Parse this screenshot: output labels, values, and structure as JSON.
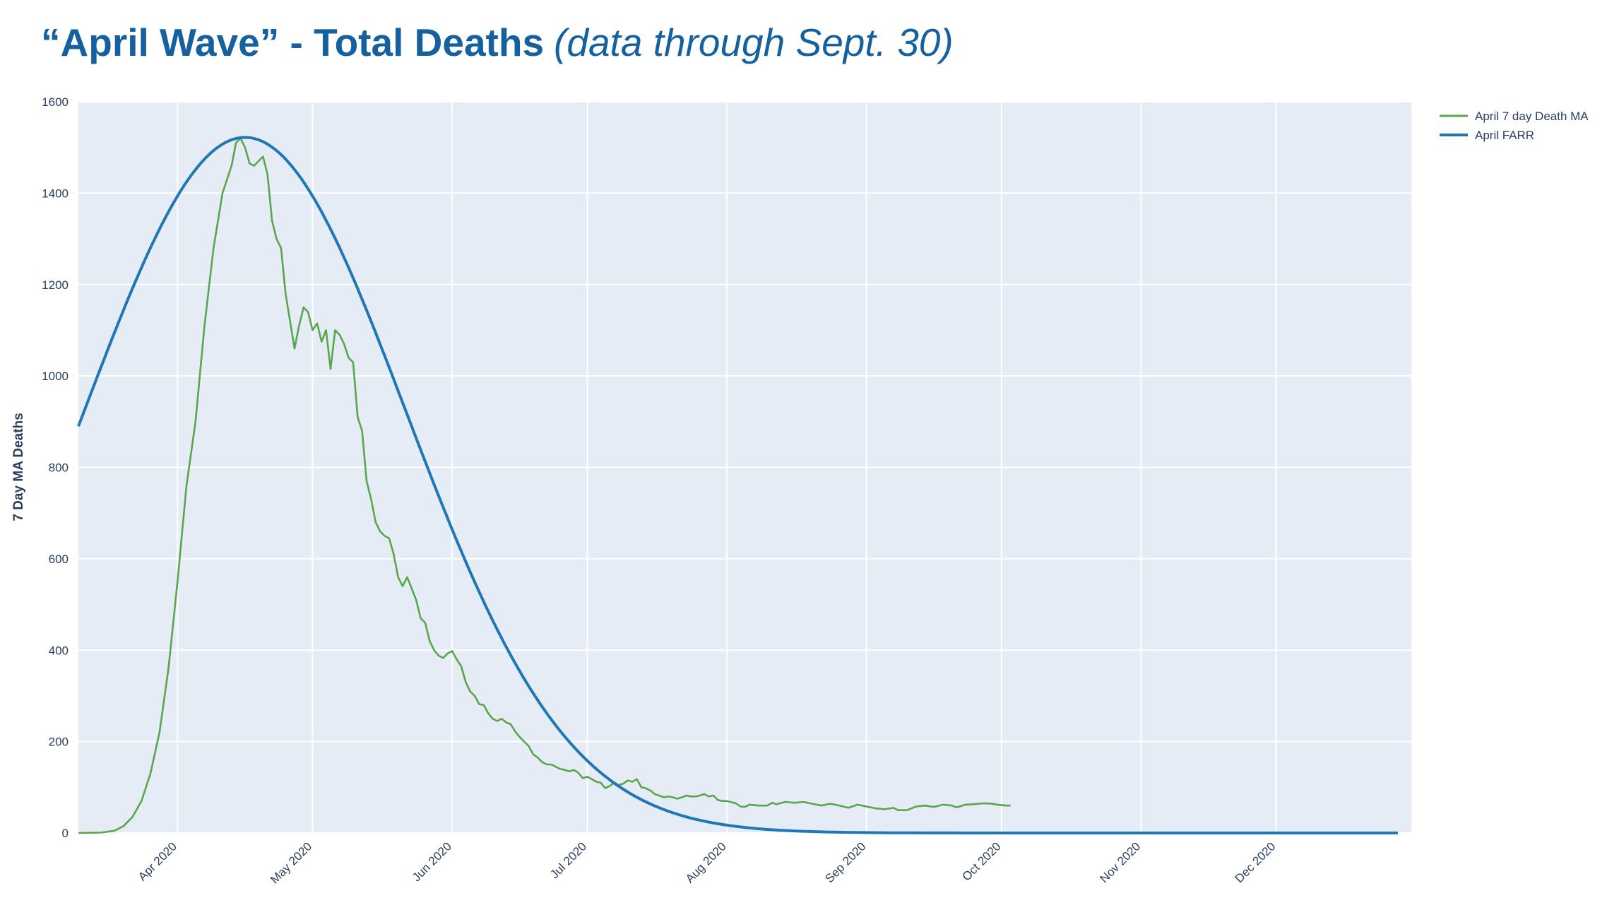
{
  "title": {
    "main": "“April Wave” - Total Deaths",
    "sub": "(data through Sept. 30)"
  },
  "chart_data": {
    "type": "line",
    "ylabel": "7 Day MA Deaths",
    "ylim": [
      0,
      1600
    ],
    "yticks": [
      0,
      200,
      400,
      600,
      800,
      1000,
      1200,
      1400,
      1600
    ],
    "xlim": [
      "2020-03-10",
      "2020-12-31"
    ],
    "xticks": [
      {
        "date": "2020-04-01",
        "label": "Apr 2020"
      },
      {
        "date": "2020-05-01",
        "label": "May 2020"
      },
      {
        "date": "2020-06-01",
        "label": "Jun 2020"
      },
      {
        "date": "2020-07-01",
        "label": "Jul 2020"
      },
      {
        "date": "2020-08-01",
        "label": "Aug 2020"
      },
      {
        "date": "2020-09-01",
        "label": "Sep 2020"
      },
      {
        "date": "2020-10-01",
        "label": "Oct 2020"
      },
      {
        "date": "2020-11-01",
        "label": "Nov 2020"
      },
      {
        "date": "2020-12-01",
        "label": "Dec 2020"
      }
    ],
    "grid": true,
    "legend_position": "top-right",
    "series": [
      {
        "name": "April 7 day Death MA",
        "color": "#5aa64b",
        "points": [
          [
            "2020-03-10",
            0
          ],
          [
            "2020-03-15",
            1
          ],
          [
            "2020-03-18",
            5
          ],
          [
            "2020-03-20",
            15
          ],
          [
            "2020-03-21",
            25
          ],
          [
            "2020-03-22",
            35
          ],
          [
            "2020-03-24",
            70
          ],
          [
            "2020-03-26",
            130
          ],
          [
            "2020-03-28",
            220
          ],
          [
            "2020-03-30",
            360
          ],
          [
            "2020-04-01",
            550
          ],
          [
            "2020-04-03",
            760
          ],
          [
            "2020-04-05",
            900
          ],
          [
            "2020-04-07",
            1110
          ],
          [
            "2020-04-09",
            1280
          ],
          [
            "2020-04-11",
            1400
          ],
          [
            "2020-04-13",
            1460
          ],
          [
            "2020-04-14",
            1510
          ],
          [
            "2020-04-15",
            1520
          ],
          [
            "2020-04-16",
            1500
          ],
          [
            "2020-04-17",
            1465
          ],
          [
            "2020-04-18",
            1460
          ],
          [
            "2020-04-19",
            1470
          ],
          [
            "2020-04-20",
            1480
          ],
          [
            "2020-04-21",
            1440
          ],
          [
            "2020-04-22",
            1340
          ],
          [
            "2020-04-23",
            1300
          ],
          [
            "2020-04-24",
            1280
          ],
          [
            "2020-04-25",
            1180
          ],
          [
            "2020-04-26",
            1120
          ],
          [
            "2020-04-27",
            1060
          ],
          [
            "2020-04-28",
            1110
          ],
          [
            "2020-04-29",
            1150
          ],
          [
            "2020-04-30",
            1140
          ],
          [
            "2020-05-01",
            1100
          ],
          [
            "2020-05-02",
            1115
          ],
          [
            "2020-05-03",
            1075
          ],
          [
            "2020-05-04",
            1100
          ],
          [
            "2020-05-05",
            1015
          ],
          [
            "2020-05-06",
            1100
          ],
          [
            "2020-05-07",
            1090
          ],
          [
            "2020-05-08",
            1070
          ],
          [
            "2020-05-09",
            1040
          ],
          [
            "2020-05-10",
            1030
          ],
          [
            "2020-05-11",
            910
          ],
          [
            "2020-05-12",
            880
          ],
          [
            "2020-05-13",
            770
          ],
          [
            "2020-05-14",
            730
          ],
          [
            "2020-05-15",
            680
          ],
          [
            "2020-05-16",
            660
          ],
          [
            "2020-05-17",
            650
          ],
          [
            "2020-05-18",
            645
          ],
          [
            "2020-05-19",
            610
          ],
          [
            "2020-05-20",
            560
          ],
          [
            "2020-05-21",
            540
          ],
          [
            "2020-05-22",
            560
          ],
          [
            "2020-05-23",
            535
          ],
          [
            "2020-05-24",
            510
          ],
          [
            "2020-05-25",
            470
          ],
          [
            "2020-05-26",
            460
          ],
          [
            "2020-05-27",
            420
          ],
          [
            "2020-05-28",
            400
          ],
          [
            "2020-05-29",
            388
          ],
          [
            "2020-05-30",
            383
          ],
          [
            "2020-05-31",
            393
          ],
          [
            "2020-06-01",
            398
          ],
          [
            "2020-06-02",
            380
          ],
          [
            "2020-06-03",
            365
          ],
          [
            "2020-06-04",
            330
          ],
          [
            "2020-06-05",
            310
          ],
          [
            "2020-06-06",
            300
          ],
          [
            "2020-06-07",
            282
          ],
          [
            "2020-06-08",
            280
          ],
          [
            "2020-06-09",
            262
          ],
          [
            "2020-06-10",
            250
          ],
          [
            "2020-06-11",
            245
          ],
          [
            "2020-06-12",
            250
          ],
          [
            "2020-06-13",
            242
          ],
          [
            "2020-06-14",
            238
          ],
          [
            "2020-06-15",
            222
          ],
          [
            "2020-06-16",
            210
          ],
          [
            "2020-06-17",
            200
          ],
          [
            "2020-06-18",
            190
          ],
          [
            "2020-06-19",
            172
          ],
          [
            "2020-06-20",
            165
          ],
          [
            "2020-06-21",
            155
          ],
          [
            "2020-06-22",
            150
          ],
          [
            "2020-06-23",
            150
          ],
          [
            "2020-06-24",
            145
          ],
          [
            "2020-06-25",
            140
          ],
          [
            "2020-06-26",
            138
          ],
          [
            "2020-06-27",
            135
          ],
          [
            "2020-06-28",
            138
          ],
          [
            "2020-06-29",
            132
          ],
          [
            "2020-06-30",
            120
          ],
          [
            "2020-07-01",
            123
          ],
          [
            "2020-07-02",
            118
          ],
          [
            "2020-07-03",
            112
          ],
          [
            "2020-07-04",
            110
          ],
          [
            "2020-07-05",
            98
          ],
          [
            "2020-07-06",
            103
          ],
          [
            "2020-07-07",
            110
          ],
          [
            "2020-07-08",
            105
          ],
          [
            "2020-07-09",
            108
          ],
          [
            "2020-07-10",
            115
          ],
          [
            "2020-07-11",
            112
          ],
          [
            "2020-07-12",
            118
          ],
          [
            "2020-07-13",
            100
          ],
          [
            "2020-07-14",
            98
          ],
          [
            "2020-07-15",
            93
          ],
          [
            "2020-07-16",
            85
          ],
          [
            "2020-07-17",
            82
          ],
          [
            "2020-07-18",
            78
          ],
          [
            "2020-07-19",
            80
          ],
          [
            "2020-07-20",
            78
          ],
          [
            "2020-07-21",
            75
          ],
          [
            "2020-07-22",
            78
          ],
          [
            "2020-07-23",
            82
          ],
          [
            "2020-07-24",
            80
          ],
          [
            "2020-07-25",
            80
          ],
          [
            "2020-07-26",
            82
          ],
          [
            "2020-07-27",
            85
          ],
          [
            "2020-07-28",
            80
          ],
          [
            "2020-07-29",
            82
          ],
          [
            "2020-07-30",
            72
          ],
          [
            "2020-07-31",
            70
          ],
          [
            "2020-08-01",
            70
          ],
          [
            "2020-08-03",
            65
          ],
          [
            "2020-08-04",
            58
          ],
          [
            "2020-08-05",
            57
          ],
          [
            "2020-08-06",
            62
          ],
          [
            "2020-08-08",
            60
          ],
          [
            "2020-08-10",
            60
          ],
          [
            "2020-08-11",
            66
          ],
          [
            "2020-08-12",
            63
          ],
          [
            "2020-08-14",
            68
          ],
          [
            "2020-08-16",
            66
          ],
          [
            "2020-08-18",
            68
          ],
          [
            "2020-08-20",
            64
          ],
          [
            "2020-08-22",
            60
          ],
          [
            "2020-08-24",
            64
          ],
          [
            "2020-08-26",
            60
          ],
          [
            "2020-08-28",
            55
          ],
          [
            "2020-08-30",
            62
          ],
          [
            "2020-09-01",
            58
          ],
          [
            "2020-09-03",
            54
          ],
          [
            "2020-09-05",
            52
          ],
          [
            "2020-09-07",
            55
          ],
          [
            "2020-09-08",
            50
          ],
          [
            "2020-09-10",
            50
          ],
          [
            "2020-09-12",
            58
          ],
          [
            "2020-09-14",
            60
          ],
          [
            "2020-09-16",
            57
          ],
          [
            "2020-09-18",
            62
          ],
          [
            "2020-09-20",
            60
          ],
          [
            "2020-09-21",
            56
          ],
          [
            "2020-09-23",
            62
          ],
          [
            "2020-09-25",
            63
          ],
          [
            "2020-09-27",
            65
          ],
          [
            "2020-09-29",
            64
          ],
          [
            "2020-09-30",
            62
          ],
          [
            "2020-10-02",
            60
          ],
          [
            "2020-10-03",
            60
          ]
        ]
      },
      {
        "name": "April FARR",
        "color": "#1f77b4",
        "curve": "gaussian",
        "peak_date": "2020-04-16",
        "peak_value": 1522,
        "value_at_start": 890,
        "start_date": "2020-03-10",
        "end_date": "2020-12-28"
      }
    ]
  }
}
